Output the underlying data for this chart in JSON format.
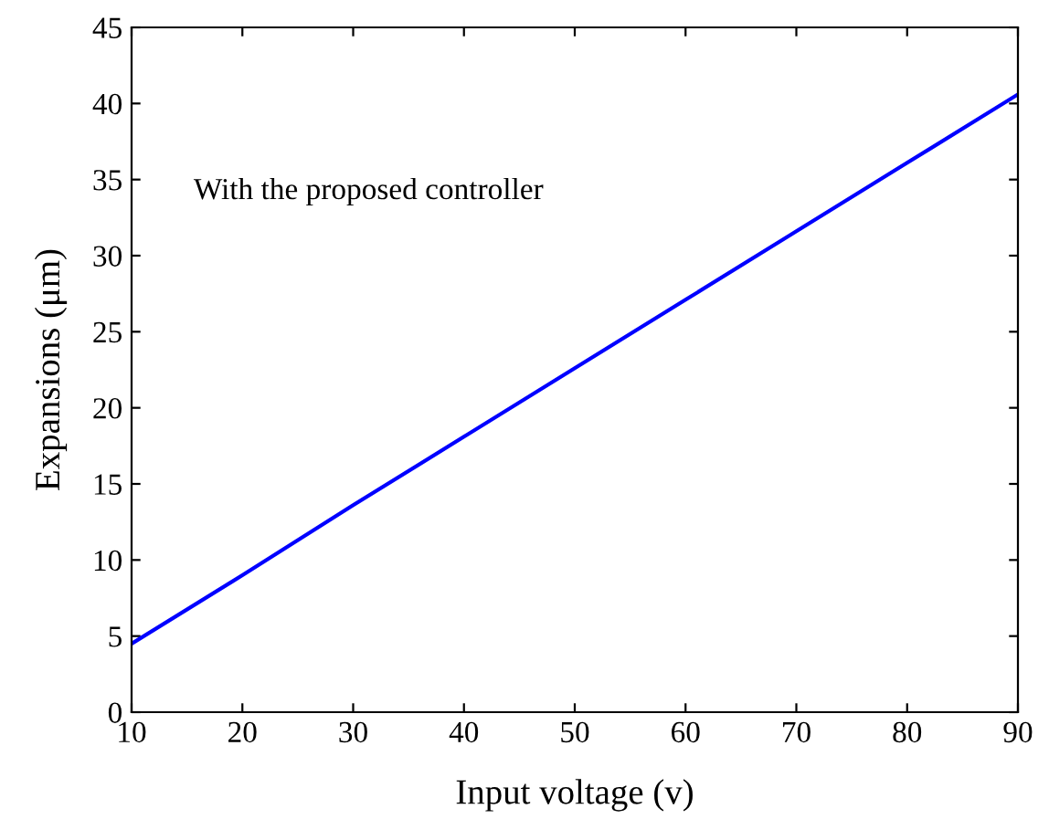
{
  "chart_data": {
    "type": "line",
    "xlabel": "Input voltage (v)",
    "ylabel": "Expansions (μm)",
    "annotations": [
      "With the proposed controller"
    ],
    "x": [
      10,
      20,
      30,
      40,
      50,
      60,
      70,
      80,
      90
    ],
    "series": [
      {
        "color": "#0000ff",
        "values": [
          4.5,
          9.0,
          13.6,
          18.1,
          22.6,
          27.1,
          31.6,
          36.1,
          40.6
        ]
      }
    ],
    "xlim": [
      10,
      90
    ],
    "ylim": [
      0,
      45
    ],
    "xticks": [
      10,
      20,
      30,
      40,
      50,
      60,
      70,
      80,
      90
    ],
    "yticks": [
      0,
      5,
      10,
      15,
      20,
      25,
      30,
      35,
      40,
      45
    ],
    "grid": false,
    "legend": false,
    "marker": "none",
    "line_style": "solid"
  }
}
